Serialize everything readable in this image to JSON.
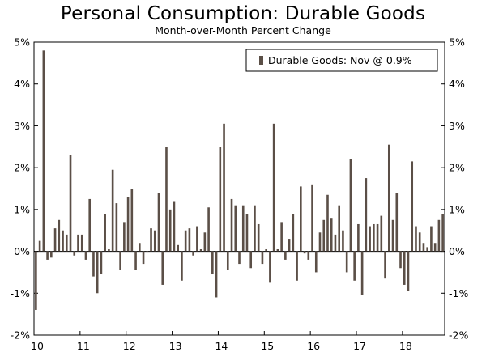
{
  "chart_data": {
    "type": "bar",
    "title": "Personal Consumption: Durable Goods",
    "subtitle": "Month-over-Month Percent Change",
    "ylim": [
      -2,
      5
    ],
    "y_ticks": [
      5,
      4,
      3,
      2,
      1,
      0,
      -1,
      -2
    ],
    "y_tick_labels": [
      "5%",
      "4%",
      "3%",
      "2%",
      "1%",
      "0%",
      "-1%",
      "-2%"
    ],
    "x_tick_labels": [
      "10",
      "11",
      "12",
      "13",
      "14",
      "15",
      "16",
      "17",
      "18"
    ],
    "x_start_year": 2010,
    "legend": "Durable Goods: Nov @ 0.9%",
    "bar_color": "#5b4f47",
    "series": [
      {
        "name": "Durable Goods",
        "values": [
          -1.4,
          0.25,
          4.8,
          -0.2,
          -0.15,
          0.55,
          0.75,
          0.5,
          0.4,
          2.3,
          -0.1,
          0.4,
          0.4,
          -0.2,
          1.25,
          -0.6,
          -1.0,
          -0.55,
          0.9,
          0.05,
          1.95,
          1.15,
          -0.45,
          0.7,
          1.3,
          1.5,
          -0.45,
          0.2,
          -0.3,
          0.0,
          0.55,
          0.5,
          1.4,
          -0.8,
          2.5,
          1.0,
          1.2,
          0.15,
          -0.7,
          0.5,
          0.55,
          -0.1,
          0.6,
          0.05,
          0.45,
          1.05,
          -0.55,
          -1.1,
          2.5,
          3.05,
          -0.45,
          1.25,
          1.1,
          -0.3,
          1.1,
          0.9,
          -0.4,
          1.1,
          0.65,
          -0.3,
          0.05,
          -0.75,
          3.05,
          0.05,
          0.7,
          -0.2,
          0.3,
          0.9,
          -0.7,
          1.55,
          -0.05,
          -0.2,
          1.6,
          -0.5,
          0.45,
          0.75,
          1.35,
          0.8,
          0.4,
          1.1,
          0.5,
          -0.5,
          2.2,
          -0.7,
          0.65,
          -1.05,
          1.75,
          0.6,
          0.65,
          0.65,
          0.85,
          -0.65,
          2.55,
          0.75,
          1.4,
          -0.4,
          -0.8,
          -0.95,
          2.15,
          0.6,
          0.45,
          0.2,
          0.1,
          0.6,
          0.2,
          0.75,
          0.9
        ]
      }
    ]
  }
}
